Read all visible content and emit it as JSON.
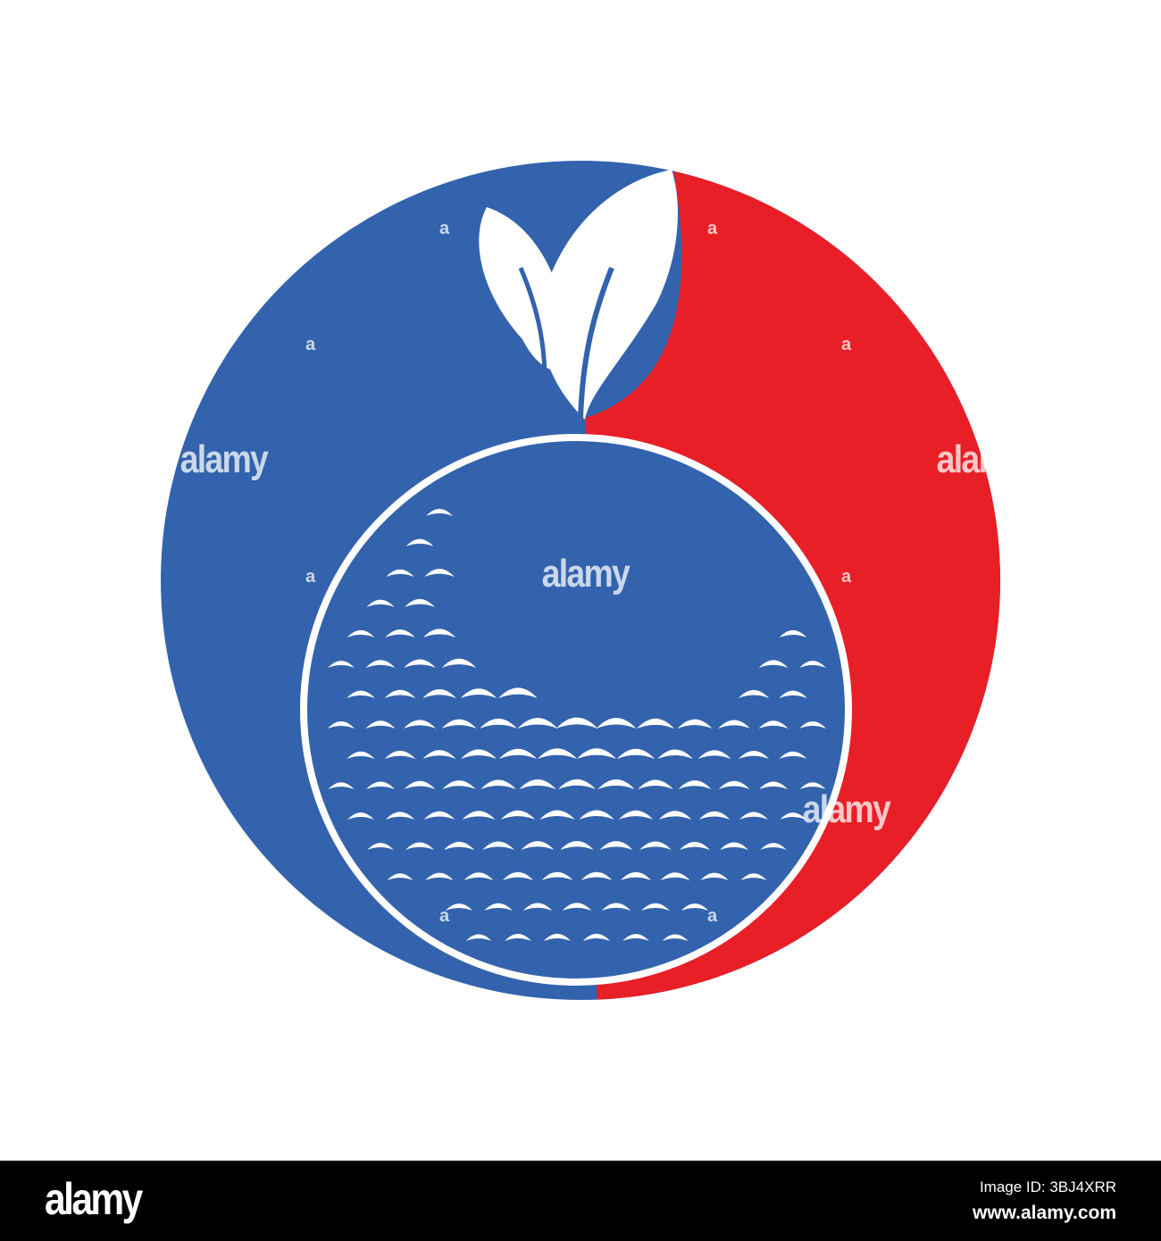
{
  "logo": {
    "colors": {
      "blue": "#3363ad",
      "red": "#e81f27",
      "white": "#ffffff"
    },
    "elements": [
      "circle-badge",
      "golf-ball",
      "leaf-sprout"
    ]
  },
  "watermark": {
    "text": "alamy",
    "small_text": "a"
  },
  "footer": {
    "brand": "alamy",
    "image_id": "Image ID: 3BJ4XRR",
    "url": "www.alamy.com"
  }
}
